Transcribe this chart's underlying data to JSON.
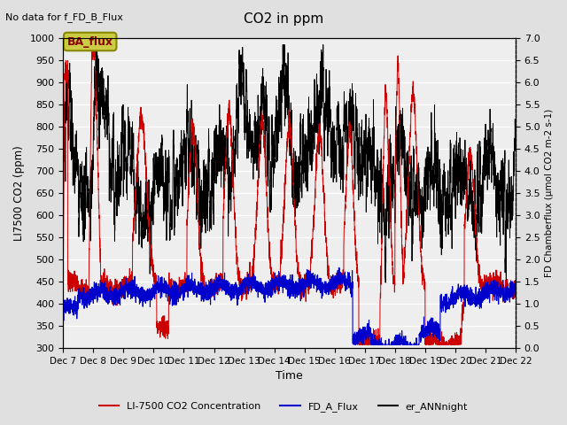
{
  "title": "CO2 in ppm",
  "note_text": "No data for f_FD_B_Flux",
  "box_label": "BA_flux",
  "ylabel_left": "LI7500 CO2 (ppm)",
  "ylabel_right": "FD Chamberflux (μmol CO2 m-2 s-1)",
  "xlabel": "Time",
  "ylim_left": [
    300,
    1000
  ],
  "ylim_right": [
    0.0,
    7.0
  ],
  "legend_entries": [
    "LI-7500 CO2 Concentration",
    "FD_A_Flux",
    "er_ANNnight"
  ],
  "line_colors": [
    "#cc0000",
    "#0000cc",
    "#000000"
  ],
  "background_color": "#e0e0e0",
  "plot_bg_color": "#eeeeee",
  "grid_color": "#ffffff",
  "n_points": 3840,
  "box_facecolor": "#cccc44",
  "box_edgecolor": "#888800",
  "box_textcolor": "#880000"
}
